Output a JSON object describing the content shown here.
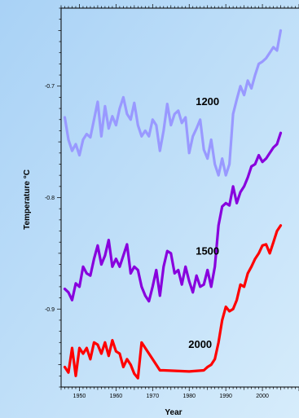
{
  "chart_data": {
    "type": "line",
    "xlabel": "Year",
    "ylabel": "Temperature °C",
    "xlim": [
      1945,
      2010
    ],
    "ylim": [
      -0.97,
      -0.63
    ],
    "x_ticks": [
      1950,
      1960,
      1970,
      1980,
      1990,
      2000
    ],
    "y_ticks": [
      -0.7,
      -0.8,
      -0.9
    ],
    "x_tick_labels": [
      "1950",
      "1960",
      "1970",
      "1980",
      "1990",
      "2000"
    ],
    "y_tick_labels": [
      "-0.7",
      "-0.8",
      "-0.9"
    ],
    "grid": false,
    "background": "gradient-light-blue",
    "series": [
      {
        "name": "1200",
        "color": "#9999ff",
        "points": [
          [
            1946,
            -0.728
          ],
          [
            1947,
            -0.748
          ],
          [
            1948,
            -0.758
          ],
          [
            1949,
            -0.752
          ],
          [
            1950,
            -0.762
          ],
          [
            1951,
            -0.748
          ],
          [
            1952,
            -0.743
          ],
          [
            1953,
            -0.746
          ],
          [
            1954,
            -0.73
          ],
          [
            1955,
            -0.714
          ],
          [
            1956,
            -0.745
          ],
          [
            1957,
            -0.718
          ],
          [
            1958,
            -0.738
          ],
          [
            1959,
            -0.727
          ],
          [
            1960,
            -0.735
          ],
          [
            1961,
            -0.72
          ],
          [
            1962,
            -0.71
          ],
          [
            1963,
            -0.725
          ],
          [
            1964,
            -0.73
          ],
          [
            1965,
            -0.715
          ],
          [
            1966,
            -0.735
          ],
          [
            1967,
            -0.745
          ],
          [
            1968,
            -0.74
          ],
          [
            1969,
            -0.745
          ],
          [
            1970,
            -0.73
          ],
          [
            1971,
            -0.735
          ],
          [
            1972,
            -0.758
          ],
          [
            1973,
            -0.74
          ],
          [
            1974,
            -0.716
          ],
          [
            1975,
            -0.735
          ],
          [
            1976,
            -0.725
          ],
          [
            1977,
            -0.722
          ],
          [
            1978,
            -0.733
          ],
          [
            1979,
            -0.728
          ],
          [
            1980,
            -0.76
          ],
          [
            1981,
            -0.745
          ],
          [
            1982,
            -0.738
          ],
          [
            1983,
            -0.73
          ],
          [
            1984,
            -0.757
          ],
          [
            1985,
            -0.765
          ],
          [
            1986,
            -0.748
          ],
          [
            1987,
            -0.77
          ],
          [
            1988,
            -0.78
          ],
          [
            1989,
            -0.765
          ],
          [
            1990,
            -0.78
          ],
          [
            1991,
            -0.77
          ],
          [
            1992,
            -0.725
          ],
          [
            1993,
            -0.712
          ],
          [
            1994,
            -0.7
          ],
          [
            1995,
            -0.708
          ],
          [
            1996,
            -0.695
          ],
          [
            1997,
            -0.702
          ],
          [
            1998,
            -0.69
          ],
          [
            1999,
            -0.68
          ],
          [
            2000,
            -0.678
          ],
          [
            2001,
            -0.675
          ],
          [
            2002,
            -0.67
          ],
          [
            2003,
            -0.665
          ],
          [
            2004,
            -0.668
          ],
          [
            2005,
            -0.65
          ]
        ]
      },
      {
        "name": "1500",
        "color": "#8800dd",
        "points": [
          [
            1946,
            -0.882
          ],
          [
            1947,
            -0.885
          ],
          [
            1948,
            -0.892
          ],
          [
            1949,
            -0.877
          ],
          [
            1950,
            -0.88
          ],
          [
            1951,
            -0.862
          ],
          [
            1952,
            -0.868
          ],
          [
            1953,
            -0.87
          ],
          [
            1954,
            -0.855
          ],
          [
            1955,
            -0.843
          ],
          [
            1956,
            -0.86
          ],
          [
            1957,
            -0.852
          ],
          [
            1958,
            -0.838
          ],
          [
            1959,
            -0.862
          ],
          [
            1960,
            -0.855
          ],
          [
            1961,
            -0.862
          ],
          [
            1962,
            -0.852
          ],
          [
            1963,
            -0.842
          ],
          [
            1964,
            -0.868
          ],
          [
            1965,
            -0.862
          ],
          [
            1966,
            -0.865
          ],
          [
            1967,
            -0.88
          ],
          [
            1968,
            -0.888
          ],
          [
            1969,
            -0.893
          ],
          [
            1970,
            -0.88
          ],
          [
            1971,
            -0.865
          ],
          [
            1972,
            -0.888
          ],
          [
            1973,
            -0.862
          ],
          [
            1974,
            -0.848
          ],
          [
            1975,
            -0.85
          ],
          [
            1976,
            -0.868
          ],
          [
            1977,
            -0.865
          ],
          [
            1978,
            -0.878
          ],
          [
            1979,
            -0.862
          ],
          [
            1980,
            -0.875
          ],
          [
            1981,
            -0.885
          ],
          [
            1982,
            -0.87
          ],
          [
            1983,
            -0.88
          ],
          [
            1984,
            -0.878
          ],
          [
            1985,
            -0.865
          ],
          [
            1986,
            -0.88
          ],
          [
            1987,
            -0.862
          ],
          [
            1988,
            -0.825
          ],
          [
            1989,
            -0.808
          ],
          [
            1990,
            -0.805
          ],
          [
            1991,
            -0.807
          ],
          [
            1992,
            -0.79
          ],
          [
            1993,
            -0.805
          ],
          [
            1994,
            -0.795
          ],
          [
            1995,
            -0.79
          ],
          [
            1996,
            -0.782
          ],
          [
            1997,
            -0.772
          ],
          [
            1998,
            -0.77
          ],
          [
            1999,
            -0.762
          ],
          [
            2000,
            -0.768
          ],
          [
            2001,
            -0.765
          ],
          [
            2002,
            -0.76
          ],
          [
            2003,
            -0.755
          ],
          [
            2004,
            -0.752
          ],
          [
            2005,
            -0.742
          ]
        ]
      },
      {
        "name": "2000",
        "color": "#ff0000",
        "points": [
          [
            1946,
            -0.952
          ],
          [
            1947,
            -0.957
          ],
          [
            1948,
            -0.935
          ],
          [
            1949,
            -0.96
          ],
          [
            1950,
            -0.935
          ],
          [
            1951,
            -0.94
          ],
          [
            1952,
            -0.935
          ],
          [
            1953,
            -0.945
          ],
          [
            1954,
            -0.93
          ],
          [
            1955,
            -0.932
          ],
          [
            1956,
            -0.94
          ],
          [
            1957,
            -0.93
          ],
          [
            1958,
            -0.942
          ],
          [
            1959,
            -0.928
          ],
          [
            1960,
            -0.938
          ],
          [
            1961,
            -0.94
          ],
          [
            1962,
            -0.952
          ],
          [
            1963,
            -0.945
          ],
          [
            1964,
            -0.95
          ],
          [
            1965,
            -0.958
          ],
          [
            1966,
            -0.962
          ],
          [
            1967,
            -0.93
          ],
          [
            1970,
            -0.945
          ],
          [
            1972,
            -0.955
          ],
          [
            1973,
            -0.955
          ],
          [
            1980,
            -0.956
          ],
          [
            1984,
            -0.955
          ],
          [
            1985,
            -0.952
          ],
          [
            1986,
            -0.95
          ],
          [
            1987,
            -0.945
          ],
          [
            1988,
            -0.93
          ],
          [
            1989,
            -0.91
          ],
          [
            1990,
            -0.898
          ],
          [
            1991,
            -0.902
          ],
          [
            1992,
            -0.9
          ],
          [
            1993,
            -0.892
          ],
          [
            1994,
            -0.878
          ],
          [
            1995,
            -0.88
          ],
          [
            1996,
            -0.868
          ],
          [
            1997,
            -0.862
          ],
          [
            1998,
            -0.855
          ],
          [
            1999,
            -0.85
          ],
          [
            2000,
            -0.843
          ],
          [
            2001,
            -0.842
          ],
          [
            2002,
            -0.85
          ],
          [
            2003,
            -0.84
          ],
          [
            2004,
            -0.83
          ],
          [
            2005,
            -0.825
          ]
        ]
      }
    ],
    "annotations": [
      {
        "text": "1200",
        "x": 1985,
        "y": -0.717
      },
      {
        "text": "1500",
        "x": 1985,
        "y": -0.851
      },
      {
        "text": "2000",
        "x": 1983,
        "y": -0.935
      }
    ]
  }
}
